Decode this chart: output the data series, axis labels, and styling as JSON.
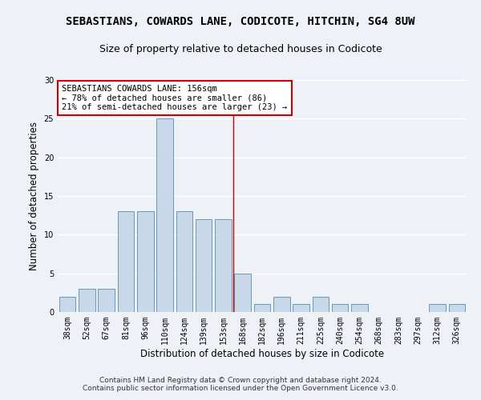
{
  "title": "SEBASTIANS, COWARDS LANE, CODICOTE, HITCHIN, SG4 8UW",
  "subtitle": "Size of property relative to detached houses in Codicote",
  "xlabel": "Distribution of detached houses by size in Codicote",
  "ylabel": "Number of detached properties",
  "bar_color": "#c8d8e8",
  "bar_edge_color": "#6699bb",
  "categories": [
    "38sqm",
    "52sqm",
    "67sqm",
    "81sqm",
    "96sqm",
    "110sqm",
    "124sqm",
    "139sqm",
    "153sqm",
    "168sqm",
    "182sqm",
    "196sqm",
    "211sqm",
    "225sqm",
    "240sqm",
    "254sqm",
    "268sqm",
    "283sqm",
    "297sqm",
    "312sqm",
    "326sqm"
  ],
  "values": [
    2,
    3,
    3,
    13,
    13,
    25,
    13,
    12,
    12,
    5,
    1,
    2,
    1,
    2,
    1,
    1,
    0,
    0,
    0,
    1,
    1
  ],
  "ylim": [
    0,
    30
  ],
  "yticks": [
    0,
    5,
    10,
    15,
    20,
    25,
    30
  ],
  "property_line_x": 8.5,
  "property_line_color": "#cc0000",
  "annotation_text": "SEBASTIANS COWARDS LANE: 156sqm\n← 78% of detached houses are smaller (86)\n21% of semi-detached houses are larger (23) →",
  "annotation_box_color": "#ffffff",
  "annotation_box_edge": "#cc0000",
  "footer_text": "Contains HM Land Registry data © Crown copyright and database right 2024.\nContains public sector information licensed under the Open Government Licence v3.0.",
  "background_color": "#eef2f7",
  "grid_color": "#ffffff",
  "title_fontsize": 10,
  "subtitle_fontsize": 9,
  "axis_label_fontsize": 8.5,
  "tick_fontsize": 7,
  "annotation_fontsize": 7.5,
  "footer_fontsize": 6.5
}
